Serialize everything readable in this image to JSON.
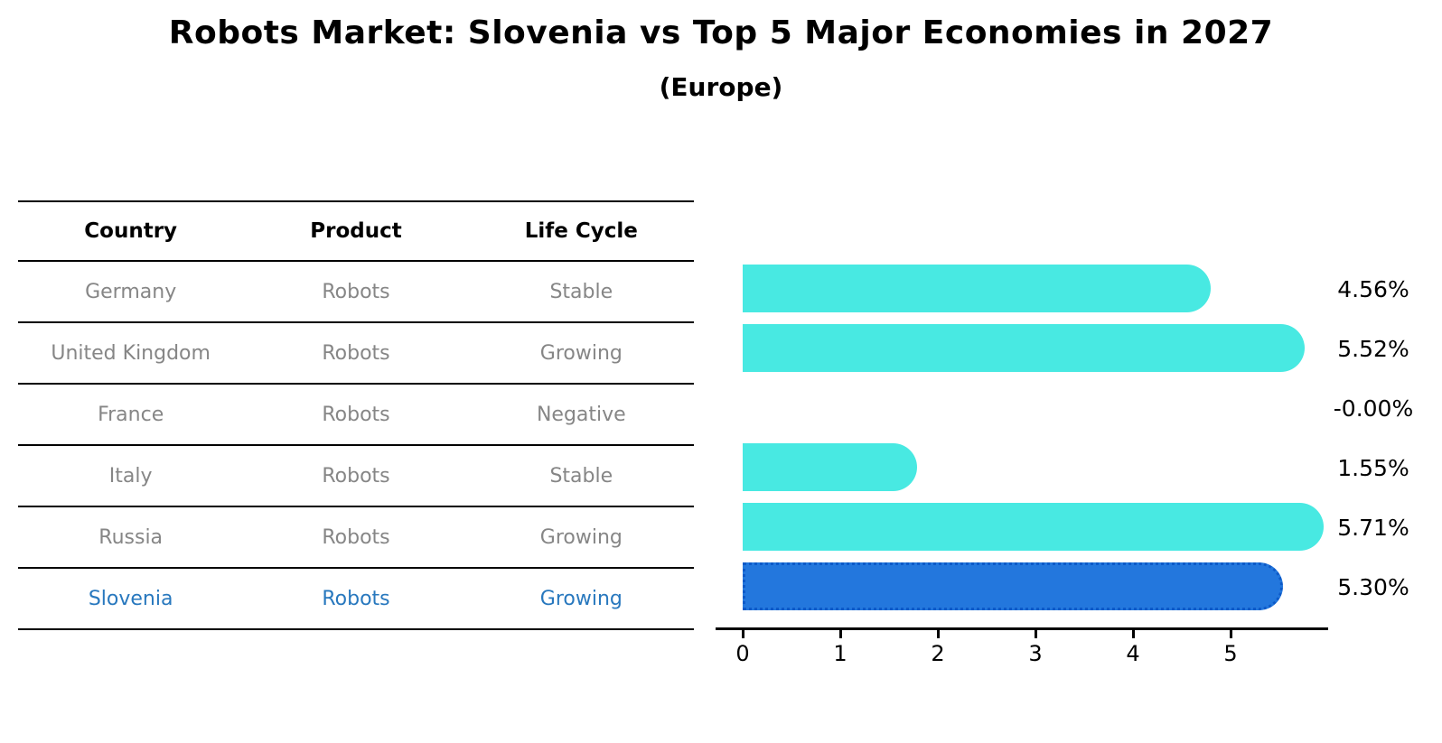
{
  "title": "Robots Market: Slovenia vs Top 5 Major Economies in 2027",
  "subtitle": "(Europe)",
  "table": {
    "headers": [
      "Country",
      "Product",
      "Life Cycle"
    ],
    "rows": [
      {
        "country": "Germany",
        "product": "Robots",
        "life_cycle": "Stable",
        "highlight": false
      },
      {
        "country": "United Kingdom",
        "product": "Robots",
        "life_cycle": "Growing",
        "highlight": false
      },
      {
        "country": "France",
        "product": "Robots",
        "life_cycle": "Negative",
        "highlight": false
      },
      {
        "country": "Italy",
        "product": "Robots",
        "life_cycle": "Stable",
        "highlight": false
      },
      {
        "country": "Russia",
        "product": "Robots",
        "life_cycle": "Growing",
        "highlight": false
      },
      {
        "country": "Slovenia",
        "product": "Robots",
        "life_cycle": "Growing",
        "highlight": true
      }
    ]
  },
  "chart_data": {
    "type": "bar",
    "orientation": "horizontal",
    "categories": [
      "Germany",
      "United Kingdom",
      "France",
      "Italy",
      "Russia",
      "Slovenia"
    ],
    "values": [
      4.56,
      5.52,
      -0.0,
      1.55,
      5.71,
      5.3
    ],
    "value_labels": [
      "4.56%",
      "5.52%",
      "-0.00%",
      "1.55%",
      "5.71%",
      "5.30%"
    ],
    "highlight_index": 5,
    "xlim": [
      0,
      6
    ],
    "xticks": [
      0,
      1,
      2,
      3,
      4,
      5
    ],
    "grid": false,
    "legend": false,
    "xlabel": "",
    "ylabel": ""
  },
  "colors": {
    "bar_cyan": "#48e9e2",
    "bar_blue": "#2377dd",
    "bar_blue_border": "#0d5ac8",
    "highlight_text": "#2878be",
    "row_text_gray": "#868686",
    "line_black": "#000000"
  }
}
